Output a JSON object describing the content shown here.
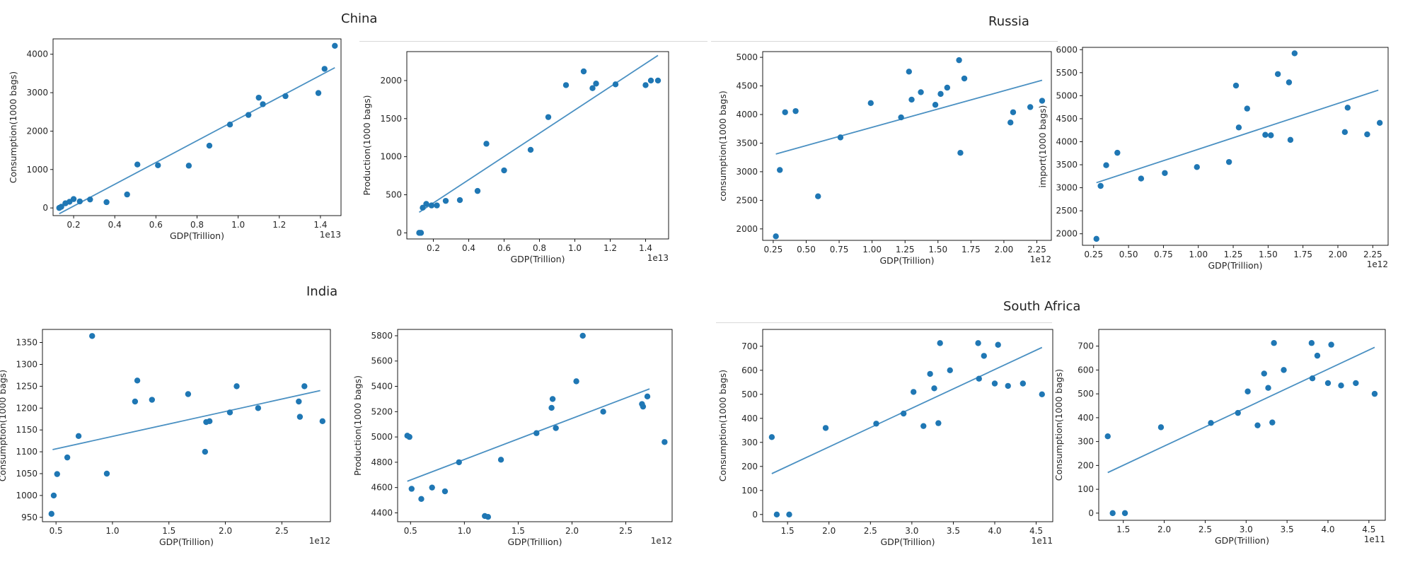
{
  "group_titles": {
    "china": "China",
    "russia": "Russia",
    "india": "India",
    "south_africa": "South Africa"
  },
  "colors": {
    "marker": "#1f77b4",
    "fit_line": "#4a90c2",
    "frame": "#000000"
  },
  "chart_data": [
    {
      "id": "china-consumption",
      "type": "scatter",
      "xlabel": "GDP(Trillion)",
      "ylabel": "Consumption(1000 bags)",
      "x_offset_text": "1e13",
      "xlim": [
        1000000000000.0,
        15000000000000.0
      ],
      "ylim": [
        -200,
        4400
      ],
      "xticks": [
        2000000000000.0,
        4000000000000.0,
        6000000000000.0,
        8000000000000.0,
        10000000000000.0,
        12000000000000.0,
        14000000000000.0
      ],
      "xticklabels": [
        "0.2",
        "0.4",
        "0.6",
        "0.8",
        "1.0",
        "1.2",
        "1.4"
      ],
      "yticks": [
        0,
        1000,
        2000,
        3000,
        4000
      ],
      "yticklabels": [
        "0",
        "1000",
        "2000",
        "3000",
        "4000"
      ],
      "points": [
        [
          1300000000000.0,
          0
        ],
        [
          1400000000000.0,
          30
        ],
        [
          1600000000000.0,
          120
        ],
        [
          1800000000000.0,
          160
        ],
        [
          2000000000000.0,
          230
        ],
        [
          2300000000000.0,
          170
        ],
        [
          2800000000000.0,
          220
        ],
        [
          3600000000000.0,
          150
        ],
        [
          4600000000000.0,
          350
        ],
        [
          5100000000000.0,
          1130
        ],
        [
          6100000000000.0,
          1110
        ],
        [
          7600000000000.0,
          1100
        ],
        [
          8600000000000.0,
          1620
        ],
        [
          9600000000000.0,
          2170
        ],
        [
          10500000000000.0,
          2420
        ],
        [
          11000000000000.0,
          2870
        ],
        [
          11200000000000.0,
          2700
        ],
        [
          12300000000000.0,
          2910
        ],
        [
          13900000000000.0,
          2990
        ],
        [
          14200000000000.0,
          3620
        ],
        [
          14700000000000.0,
          4220
        ]
      ],
      "fit": [
        [
          1300000000000.0,
          -150
        ],
        [
          14700000000000.0,
          3650
        ]
      ],
      "grid": false
    },
    {
      "id": "china-production",
      "type": "scatter",
      "xlabel": "GDP(Trillion)",
      "ylabel": "Production(1000 bags)",
      "x_offset_text": "1e13",
      "xlim": [
        500000000000.0,
        15300000000000.0
      ],
      "ylim": [
        -80,
        2380
      ],
      "xticks": [
        2000000000000.0,
        4000000000000.0,
        6000000000000.0,
        8000000000000.0,
        10000000000000.0,
        12000000000000.0,
        14000000000000.0
      ],
      "xticklabels": [
        "0.2",
        "0.4",
        "0.6",
        "0.8",
        "1.0",
        "1.2",
        "1.4"
      ],
      "yticks": [
        0,
        500,
        1000,
        1500,
        2000
      ],
      "yticklabels": [
        "0",
        "500",
        "1000",
        "1500",
        "2000"
      ],
      "points": [
        [
          1200000000000.0,
          0
        ],
        [
          1300000000000.0,
          0
        ],
        [
          1400000000000.0,
          330
        ],
        [
          1600000000000.0,
          380
        ],
        [
          1900000000000.0,
          360
        ],
        [
          2200000000000.0,
          360
        ],
        [
          2700000000000.0,
          420
        ],
        [
          3500000000000.0,
          430
        ],
        [
          4500000000000.0,
          550
        ],
        [
          5000000000000.0,
          1170
        ],
        [
          6000000000000.0,
          820
        ],
        [
          7500000000000.0,
          1090
        ],
        [
          8500000000000.0,
          1520
        ],
        [
          9500000000000.0,
          1940
        ],
        [
          10500000000000.0,
          2120
        ],
        [
          11000000000000.0,
          1900
        ],
        [
          11200000000000.0,
          1960
        ],
        [
          12300000000000.0,
          1950
        ],
        [
          14000000000000.0,
          1940
        ],
        [
          14300000000000.0,
          2000
        ],
        [
          14700000000000.0,
          2000
        ]
      ],
      "fit": [
        [
          1200000000000.0,
          270
        ],
        [
          14700000000000.0,
          2330
        ]
      ],
      "grid": false
    },
    {
      "id": "russia-consumption",
      "type": "scatter",
      "xlabel": "GDP(Trillion)",
      "ylabel": "consumption(1000 bags)",
      "x_offset_text": "1e12",
      "xlim": [
        170000000000.0,
        2360000000000.0
      ],
      "ylim": [
        1800,
        5100
      ],
      "xticks": [
        250000000000.0,
        500000000000.0,
        750000000000.0,
        1000000000000.0,
        1250000000000.0,
        1500000000000.0,
        1750000000000.0,
        2000000000000.0,
        2250000000000.0
      ],
      "xticklabels": [
        "0.25",
        "0.50",
        "0.75",
        "1.00",
        "1.25",
        "1.50",
        "1.75",
        "2.00",
        "2.25"
      ],
      "yticks": [
        2000,
        2500,
        3000,
        3500,
        4000,
        4500,
        5000
      ],
      "yticklabels": [
        "2000",
        "2500",
        "3000",
        "3500",
        "4000",
        "4500",
        "5000"
      ],
      "points": [
        [
          270000000000.0,
          1870
        ],
        [
          300000000000.0,
          3030
        ],
        [
          340000000000.0,
          4040
        ],
        [
          420000000000.0,
          4060
        ],
        [
          590000000000.0,
          2570
        ],
        [
          760000000000.0,
          3600
        ],
        [
          990000000000.0,
          4200
        ],
        [
          1220000000000.0,
          3950
        ],
        [
          1280000000000.0,
          4750
        ],
        [
          1300000000000.0,
          4260
        ],
        [
          1370000000000.0,
          4390
        ],
        [
          1480000000000.0,
          4170
        ],
        [
          1520000000000.0,
          4360
        ],
        [
          1570000000000.0,
          4470
        ],
        [
          1660000000000.0,
          4950
        ],
        [
          1670000000000.0,
          3330
        ],
        [
          1700000000000.0,
          4630
        ],
        [
          2050000000000.0,
          3860
        ],
        [
          2070000000000.0,
          4040
        ],
        [
          2200000000000.0,
          4130
        ],
        [
          2290000000000.0,
          4240
        ]
      ],
      "fit": [
        [
          270000000000.0,
          3310
        ],
        [
          2290000000000.0,
          4600
        ]
      ],
      "grid": false
    },
    {
      "id": "russia-import",
      "type": "scatter",
      "xlabel": "GDP(Trillion)",
      "ylabel": "import(1000 bags)",
      "x_offset_text": "1e12",
      "xlim": [
        170000000000.0,
        2360000000000.0
      ],
      "ylim": [
        1750,
        6050
      ],
      "xticks": [
        250000000000.0,
        500000000000.0,
        750000000000.0,
        1000000000000.0,
        1250000000000.0,
        1500000000000.0,
        1750000000000.0,
        2000000000000.0,
        2250000000000.0
      ],
      "xticklabels": [
        "0.25",
        "0.50",
        "0.75",
        "1.00",
        "1.25",
        "1.50",
        "1.75",
        "2.00",
        "2.25"
      ],
      "yticks": [
        2000,
        2500,
        3000,
        3500,
        4000,
        4500,
        5000,
        5500,
        6000
      ],
      "yticklabels": [
        "2000",
        "2500",
        "3000",
        "3500",
        "4000",
        "4500",
        "5000",
        "5500",
        "6000"
      ],
      "points": [
        [
          270000000000.0,
          1890
        ],
        [
          300000000000.0,
          3040
        ],
        [
          340000000000.0,
          3490
        ],
        [
          420000000000.0,
          3760
        ],
        [
          590000000000.0,
          3200
        ],
        [
          760000000000.0,
          3320
        ],
        [
          990000000000.0,
          3450
        ],
        [
          1220000000000.0,
          3560
        ],
        [
          1270000000000.0,
          5220
        ],
        [
          1290000000000.0,
          4310
        ],
        [
          1350000000000.0,
          4720
        ],
        [
          1480000000000.0,
          4150
        ],
        [
          1520000000000.0,
          4140
        ],
        [
          1570000000000.0,
          5470
        ],
        [
          1650000000000.0,
          5290
        ],
        [
          1660000000000.0,
          4040
        ],
        [
          1690000000000.0,
          5920
        ],
        [
          2050000000000.0,
          4210
        ],
        [
          2070000000000.0,
          4740
        ],
        [
          2210000000000.0,
          4160
        ],
        [
          2300000000000.0,
          4410
        ]
      ],
      "fit": [
        [
          270000000000.0,
          3110
        ],
        [
          2290000000000.0,
          5120
        ]
      ],
      "grid": false
    },
    {
      "id": "india-consumption",
      "type": "scatter",
      "xlabel": "GDP(Trillion)",
      "ylabel": "Consumption(1000 bags)",
      "x_offset_text": "1e12",
      "xlim": [
        380000000000.0,
        2930000000000.0
      ],
      "ylim": [
        940,
        1380
      ],
      "xticks": [
        500000000000.0,
        1000000000000.0,
        1500000000000.0,
        2000000000000.0,
        2500000000000.0
      ],
      "xticklabels": [
        "0.5",
        "1.0",
        "1.5",
        "2.0",
        "2.5"
      ],
      "yticks": [
        950,
        1000,
        1050,
        1100,
        1150,
        1200,
        1250,
        1300,
        1350
      ],
      "yticklabels": [
        "950",
        "1000",
        "1050",
        "1100",
        "1150",
        "1200",
        "1250",
        "1300",
        "1350"
      ],
      "points": [
        [
          460000000000.0,
          958
        ],
        [
          480000000000.0,
          1000
        ],
        [
          510000000000.0,
          1049
        ],
        [
          600000000000.0,
          1087
        ],
        [
          700000000000.0,
          1136
        ],
        [
          820000000000.0,
          1365
        ],
        [
          950000000000.0,
          1050
        ],
        [
          1200000000000.0,
          1215
        ],
        [
          1220000000000.0,
          1263
        ],
        [
          1350000000000.0,
          1219
        ],
        [
          1670000000000.0,
          1232
        ],
        [
          1820000000000.0,
          1100
        ],
        [
          1830000000000.0,
          1168
        ],
        [
          1860000000000.0,
          1170
        ],
        [
          2040000000000.0,
          1190
        ],
        [
          2100000000000.0,
          1250
        ],
        [
          2290000000000.0,
          1200
        ],
        [
          2650000000000.0,
          1215
        ],
        [
          2660000000000.0,
          1180
        ],
        [
          2700000000000.0,
          1250
        ],
        [
          2860000000000.0,
          1170
        ]
      ],
      "fit": [
        [
          470000000000.0,
          1105
        ],
        [
          2840000000000.0,
          1240
        ]
      ],
      "grid": false
    },
    {
      "id": "india-production",
      "type": "scatter",
      "xlabel": "GDP(Trillion)",
      "ylabel": "Production(1000 bags)",
      "x_offset_text": "1e12",
      "xlim": [
        380000000000.0,
        2930000000000.0
      ],
      "ylim": [
        4330,
        5850
      ],
      "xticks": [
        500000000000.0,
        1000000000000.0,
        1500000000000.0,
        2000000000000.0,
        2500000000000.0
      ],
      "xticklabels": [
        "0.5",
        "1.0",
        "1.5",
        "2.0",
        "2.5"
      ],
      "yticks": [
        4400,
        4600,
        4800,
        5000,
        5200,
        5400,
        5600,
        5800
      ],
      "yticklabels": [
        "4400",
        "4600",
        "4800",
        "5000",
        "5200",
        "5400",
        "5600",
        "5800"
      ],
      "points": [
        [
          470000000000.0,
          5010
        ],
        [
          490000000000.0,
          5000
        ],
        [
          510000000000.0,
          4590
        ],
        [
          600000000000.0,
          4510
        ],
        [
          700000000000.0,
          4600
        ],
        [
          820000000000.0,
          4570
        ],
        [
          950000000000.0,
          4800
        ],
        [
          1190000000000.0,
          4375
        ],
        [
          1220000000000.0,
          4368
        ],
        [
          1340000000000.0,
          4820
        ],
        [
          1670000000000.0,
          5030
        ],
        [
          1810000000000.0,
          5230
        ],
        [
          1820000000000.0,
          5300
        ],
        [
          1850000000000.0,
          5070
        ],
        [
          2040000000000.0,
          5440
        ],
        [
          2100000000000.0,
          5800
        ],
        [
          2290000000000.0,
          5200
        ],
        [
          2650000000000.0,
          5260
        ],
        [
          2660000000000.0,
          5240
        ],
        [
          2700000000000.0,
          5320
        ],
        [
          2860000000000.0,
          4960
        ]
      ],
      "fit": [
        [
          470000000000.0,
          4650
        ],
        [
          2720000000000.0,
          5380
        ]
      ],
      "grid": false
    },
    {
      "id": "south-africa-consumption-1",
      "type": "scatter",
      "xlabel": "GDP(Trillion)",
      "ylabel": "Consumption(1000 bags)",
      "x_offset_text": "1e11",
      "xlim": [
        120000000000.0,
        470000000000.0
      ],
      "ylim": [
        -30,
        770
      ],
      "xticks": [
        150000000000.0,
        200000000000.0,
        250000000000.0,
        300000000000.0,
        350000000000.0,
        400000000000.0,
        450000000000.0
      ],
      "xticklabels": [
        "1.5",
        "2.0",
        "2.5",
        "3.0",
        "3.5",
        "4.0",
        "4.5"
      ],
      "yticks": [
        0,
        100,
        200,
        300,
        400,
        500,
        600,
        700
      ],
      "yticklabels": [
        "0",
        "100",
        "200",
        "300",
        "400",
        "500",
        "600",
        "700"
      ],
      "points": [
        [
          131000000000.0,
          322
        ],
        [
          137000000000.0,
          0
        ],
        [
          152000000000.0,
          0
        ],
        [
          196000000000.0,
          360
        ],
        [
          257000000000.0,
          378
        ],
        [
          290000000000.0,
          420
        ],
        [
          302000000000.0,
          510
        ],
        [
          314000000000.0,
          368
        ],
        [
          322000000000.0,
          585
        ],
        [
          327000000000.0,
          525
        ],
        [
          332000000000.0,
          380
        ],
        [
          334000000000.0,
          713
        ],
        [
          346000000000.0,
          600
        ],
        [
          380000000000.0,
          713
        ],
        [
          381000000000.0,
          565
        ],
        [
          387000000000.0,
          660
        ],
        [
          400000000000.0,
          545
        ],
        [
          404000000000.0,
          706
        ],
        [
          416000000000.0,
          535
        ],
        [
          434000000000.0,
          545
        ],
        [
          457000000000.0,
          500
        ]
      ],
      "fit": [
        [
          131000000000.0,
          170
        ],
        [
          457000000000.0,
          695
        ]
      ],
      "grid": false
    },
    {
      "id": "south-africa-consumption-2",
      "type": "scatter",
      "xlabel": "GDP(Trillion)",
      "ylabel": "Consumption(1000 bags)",
      "x_offset_text": "1e11",
      "xlim": [
        120000000000.0,
        470000000000.0
      ],
      "ylim": [
        -30,
        770
      ],
      "xticks": [
        150000000000.0,
        200000000000.0,
        250000000000.0,
        300000000000.0,
        350000000000.0,
        400000000000.0,
        450000000000.0
      ],
      "xticklabels": [
        "1.5",
        "2.0",
        "2.5",
        "3.0",
        "3.5",
        "4.0",
        "4.5"
      ],
      "yticks": [
        0,
        100,
        200,
        300,
        400,
        500,
        600,
        700
      ],
      "yticklabels": [
        "0",
        "100",
        "200",
        "300",
        "400",
        "500",
        "600",
        "700"
      ],
      "points": [
        [
          131000000000.0,
          322
        ],
        [
          137000000000.0,
          0
        ],
        [
          152000000000.0,
          0
        ],
        [
          196000000000.0,
          360
        ],
        [
          257000000000.0,
          378
        ],
        [
          290000000000.0,
          420
        ],
        [
          302000000000.0,
          510
        ],
        [
          314000000000.0,
          368
        ],
        [
          322000000000.0,
          585
        ],
        [
          327000000000.0,
          525
        ],
        [
          332000000000.0,
          380
        ],
        [
          334000000000.0,
          713
        ],
        [
          346000000000.0,
          600
        ],
        [
          380000000000.0,
          713
        ],
        [
          381000000000.0,
          565
        ],
        [
          387000000000.0,
          660
        ],
        [
          400000000000.0,
          545
        ],
        [
          404000000000.0,
          706
        ],
        [
          416000000000.0,
          535
        ],
        [
          434000000000.0,
          545
        ],
        [
          457000000000.0,
          500
        ]
      ],
      "fit": [
        [
          131000000000.0,
          170
        ],
        [
          457000000000.0,
          695
        ]
      ],
      "grid": false
    }
  ]
}
